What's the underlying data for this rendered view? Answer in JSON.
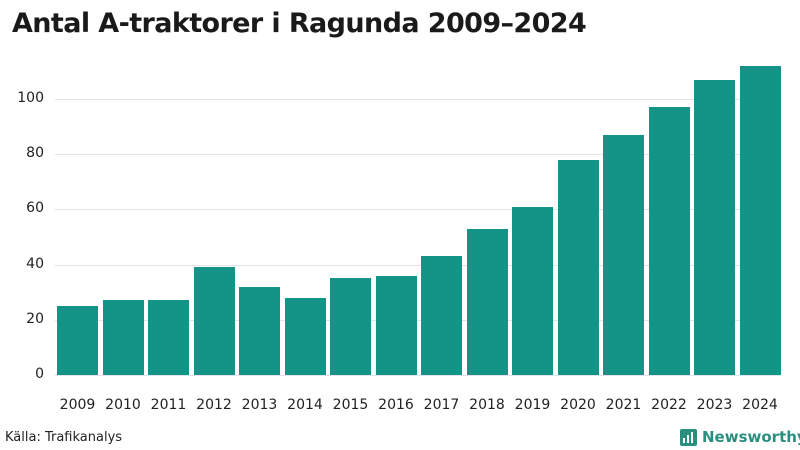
{
  "title": "Antal A-traktorer i Ragunda 2009–2024",
  "source": "Källa: Trafikanalys",
  "brand": {
    "name": "Newsworthy",
    "icon": "newsworthy-logo-icon",
    "color": "#2a8f7e"
  },
  "bar_color": "#139487",
  "y_ticks": [
    "0",
    "20",
    "40",
    "60",
    "80",
    "100"
  ],
  "chart_data": {
    "type": "bar",
    "title": "Antal A-traktorer i Ragunda 2009–2024",
    "xlabel": "",
    "ylabel": "",
    "categories": [
      "2009",
      "2010",
      "2011",
      "2012",
      "2013",
      "2014",
      "2015",
      "2016",
      "2017",
      "2018",
      "2019",
      "2020",
      "2021",
      "2022",
      "2023",
      "2024"
    ],
    "values": [
      25,
      27,
      27,
      39,
      32,
      28,
      35,
      36,
      43,
      53,
      61,
      78,
      87,
      97,
      107,
      112
    ],
    "ylim": [
      0,
      115
    ],
    "yticks": [
      0,
      20,
      40,
      60,
      80,
      100
    ],
    "grid": true,
    "legend": null,
    "source": "Källa: Trafikanalys"
  }
}
